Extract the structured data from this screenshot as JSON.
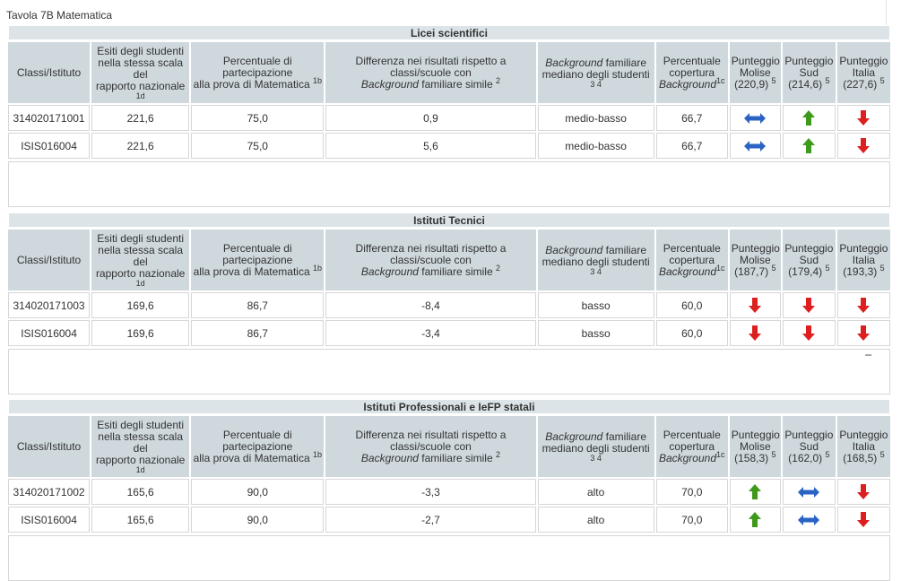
{
  "title": "Tavola 7B Matematica",
  "headers": {
    "classi": "Classi/Istituto",
    "esiti_lines": [
      "Esiti degli studenti",
      "nella stessa scala",
      "del",
      "rapporto nazionale"
    ],
    "esiti_sub": "1d",
    "perc_lines": [
      "Percentuale di",
      "partecipazione",
      "alla prova di Matematica"
    ],
    "perc_sup": "1b",
    "diff_lines": [
      "Differenza nei risultati rispetto a",
      "classi/scuole con"
    ],
    "diff_italic": "Background",
    "diff_tail": " familiare simile",
    "diff_sup": "2",
    "bg_italic": "Background",
    "bg_tail": " familiare",
    "bg_line2": "mediano degli studenti",
    "bg_sub": "3 4",
    "cop_lines": [
      "Percentuale",
      "copertura"
    ],
    "cop_italic": "Background",
    "cop_sup": "1c",
    "pm_label": "Punteggio",
    "pm_name": "Molise",
    "ps_label": "Punteggio",
    "ps_name": "Sud",
    "pi_label": "Punteggio",
    "pi_name": "Italia",
    "p_sup": "5"
  },
  "sections": [
    {
      "name": "Licei scientifici",
      "molise": "(220,9)",
      "sud": "(214,6)",
      "italia": "(227,6)",
      "rows": [
        {
          "id": "314020171001",
          "esiti": "221,6",
          "perc": "75,0",
          "diff": "0,9",
          "bg": "medio-basso",
          "cop": "66,7",
          "molise": "equal-icon",
          "sud": "up-icon",
          "italia": "down-icon"
        },
        {
          "id": "ISIS016004",
          "esiti": "221,6",
          "perc": "75,0",
          "diff": "5,6",
          "bg": "medio-basso",
          "cop": "66,7",
          "molise": "equal-icon",
          "sud": "up-icon",
          "italia": "down-icon"
        }
      ]
    },
    {
      "name": "Istituti Tecnici",
      "molise": "(187,7)",
      "sud": "(179,4)",
      "italia": "(193,3)",
      "rows": [
        {
          "id": "314020171003",
          "esiti": "169,6",
          "perc": "86,7",
          "diff": "-8,4",
          "bg": "basso",
          "cop": "60,0",
          "molise": "down-icon",
          "sud": "down-icon",
          "italia": "down-icon"
        },
        {
          "id": "ISIS016004",
          "esiti": "169,6",
          "perc": "86,7",
          "diff": "-3,4",
          "bg": "basso",
          "cop": "60,0",
          "molise": "down-icon",
          "sud": "down-icon",
          "italia": "down-icon"
        }
      ]
    },
    {
      "name": "Istituti Professionali e IeFP statali",
      "molise": "(158,3)",
      "sud": "(162,0)",
      "italia": "(168,5)",
      "rows": [
        {
          "id": "314020171002",
          "esiti": "165,6",
          "perc": "90,0",
          "diff": "-3,3",
          "bg": "alto",
          "cop": "70,0",
          "molise": "up-icon",
          "sud": "equal-icon",
          "italia": "down-icon"
        },
        {
          "id": "ISIS016004",
          "esiti": "165,6",
          "perc": "90,0",
          "diff": "-2,7",
          "bg": "alto",
          "cop": "70,0",
          "molise": "up-icon",
          "sud": "equal-icon",
          "italia": "down-icon"
        }
      ]
    }
  ],
  "colors": {
    "up": "#3e9a1a",
    "down": "#dd1f1f",
    "equal": "#2a63c4",
    "header_bg": "#ced8dd",
    "title_bg": "#dce4e7"
  }
}
